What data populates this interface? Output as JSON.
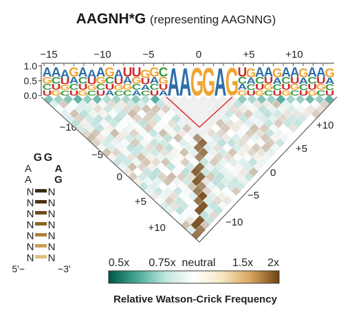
{
  "title": {
    "main": "AAGNH*G",
    "subtitle": "(representing AAGNNG)"
  },
  "logo": {
    "yticks": [
      "1.0",
      "0.5",
      "0.0"
    ],
    "left_letters": [
      "A",
      "A",
      "A",
      "G",
      "A",
      "A",
      "A",
      "G",
      "A",
      "U",
      "U",
      "G",
      "G",
      "C"
    ],
    "highlight_letters": [
      "A",
      "A",
      "G",
      "G",
      "A",
      "G"
    ],
    "right_letters": [
      "U",
      "G",
      "A",
      "A",
      "G",
      "A",
      "A",
      "G",
      "A",
      "A",
      "G"
    ],
    "colors": {
      "A": "#2e6fa8",
      "G": "#f0a530",
      "C": "#3b9b48",
      "U": "#cc2a2a"
    }
  },
  "axes": {
    "top_ticks": [
      "−15",
      "−10",
      "−5",
      "0",
      "+5",
      "+10"
    ],
    "left_ticks": [
      "−10",
      "−5",
      "0",
      "+5",
      "+10"
    ],
    "right_ticks": [
      "+10",
      "+5",
      "0",
      "−5",
      "−10"
    ]
  },
  "hairpin": {
    "loop_top": [
      "G",
      "G"
    ],
    "loop_mid_left": [
      "A",
      "A"
    ],
    "loop_mid_right": [
      "A",
      "G"
    ],
    "stem_left": [
      "N",
      "N",
      "N",
      "N",
      "N",
      "N",
      "N"
    ],
    "stem_right": [
      "N",
      "N",
      "N",
      "N",
      "N",
      "N",
      "N"
    ],
    "prime5": "5'−",
    "prime3": "−3'"
  },
  "colorbar": {
    "ticks": [
      "0.5x",
      "0.75x",
      "neutral",
      "1.5x",
      "2x"
    ],
    "label": "Relative Watson-Crick Frequency",
    "colors": [
      "#00574a",
      "#47a893",
      "#bfe6dd",
      "#ffffff",
      "#f5e6c1",
      "#d7a55d",
      "#6e4310"
    ]
  }
}
